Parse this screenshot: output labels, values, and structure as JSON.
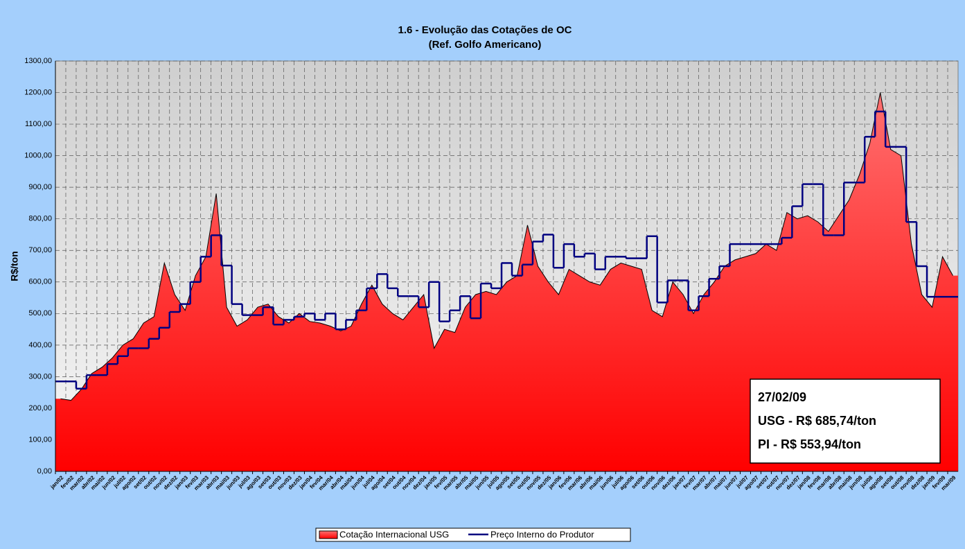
{
  "chart_data": {
    "type": "area",
    "title": "1.6 - Evolução das Cotações de OC",
    "subtitle": "(Ref. Golfo Americano)",
    "y_label": "R$/ton",
    "annotations": [
      "27/02/09",
      "USG - R$ 685,74/ton",
      "PI - R$ 553,94/ton"
    ],
    "categories": [
      "jan/02",
      "fev/02",
      "mar/02",
      "abr/02",
      "mai/02",
      "jun/02",
      "jul/02",
      "ago/02",
      "set/02",
      "out/02",
      "nov/02",
      "dez/02",
      "jan/03",
      "fev/03",
      "mar/03",
      "abr/03",
      "mai/03",
      "jun/03",
      "jul/03",
      "ago/03",
      "set/03",
      "out/03",
      "nov/03",
      "dez/03",
      "jan/04",
      "fev/04",
      "mar/04",
      "abr/04",
      "mai/04",
      "jun/04",
      "jul/04",
      "ago/04",
      "set/04",
      "out/04",
      "nov/04",
      "dez/04",
      "jan/05",
      "fev/05",
      "mar/05",
      "abr/05",
      "mai/05",
      "jun/05",
      "jul/05",
      "ago/05",
      "set/05",
      "out/05",
      "nov/05",
      "dez/05",
      "jan/06",
      "fev/06",
      "mar/06",
      "abr/06",
      "mai/06",
      "jun/06",
      "jul/06",
      "ago/06",
      "set/06",
      "out/06",
      "nov/06",
      "dez/06",
      "jan/07",
      "fev/07",
      "mar/07",
      "abr/07",
      "mai/07",
      "jun/07",
      "jul/07",
      "ago/07",
      "set/07",
      "out/07",
      "nov/07",
      "dez/07",
      "jan/08",
      "fev/08",
      "mar/08",
      "abr/08",
      "mai/08",
      "jun/08",
      "jul/08",
      "ago/08",
      "set/08",
      "out/08",
      "nov/08",
      "dez/08",
      "jan/09",
      "fev/09",
      "mar/09"
    ],
    "series": [
      {
        "name": "Cotação Internacional USG",
        "type": "area",
        "color": "#ff0000",
        "values": [
          230,
          225,
          260,
          310,
          330,
          360,
          400,
          420,
          470,
          490,
          660,
          560,
          510,
          620,
          680,
          880,
          520,
          460,
          480,
          520,
          530,
          490,
          470,
          500,
          475,
          470,
          460,
          445,
          460,
          530,
          590,
          530,
          500,
          480,
          520,
          560,
          390,
          450,
          440,
          520,
          560,
          570,
          560,
          600,
          620,
          780,
          650,
          600,
          560,
          640,
          620,
          600,
          590,
          640,
          660,
          650,
          640,
          510,
          490,
          600,
          560,
          500,
          560,
          600,
          650,
          670,
          680,
          690,
          720,
          700,
          820,
          800,
          810,
          790,
          760,
          810,
          860,
          940,
          1040,
          1200,
          1020,
          1000,
          720,
          560,
          520,
          680,
          620
        ]
      },
      {
        "name": "Preço Interno do Produtor",
        "type": "line",
        "color": "#000080",
        "values": [
          285,
          285,
          262,
          305,
          305,
          340,
          365,
          390,
          390,
          420,
          455,
          505,
          530,
          600,
          680,
          748,
          652,
          530,
          495,
          495,
          520,
          465,
          480,
          490,
          500,
          480,
          500,
          450,
          480,
          510,
          580,
          625,
          580,
          555,
          555,
          520,
          600,
          475,
          510,
          555,
          485,
          595,
          580,
          660,
          620,
          655,
          728,
          750,
          645,
          720,
          680,
          690,
          640,
          680,
          680,
          675,
          675,
          745,
          535,
          605,
          605,
          510,
          555,
          610,
          650,
          720,
          720,
          720,
          720,
          720,
          740,
          840,
          910,
          910,
          748,
          748,
          915,
          915,
          1060,
          1140,
          1028,
          1028,
          790,
          650,
          553,
          553,
          553
        ]
      }
    ],
    "ylim": [
      0,
      1300
    ],
    "yticks": [
      {
        "value": 0,
        "label": "0,00"
      },
      {
        "value": 100,
        "label": "100,00"
      },
      {
        "value": 200,
        "label": "200,00"
      },
      {
        "value": 300,
        "label": "300,00"
      },
      {
        "value": 400,
        "label": "400,00"
      },
      {
        "value": 500,
        "label": "500,00"
      },
      {
        "value": 600,
        "label": "600,00"
      },
      {
        "value": 700,
        "label": "700,00"
      },
      {
        "value": 800,
        "label": "800,00"
      },
      {
        "value": 900,
        "label": "900,00"
      },
      {
        "value": 1000,
        "label": "1000,00"
      },
      {
        "value": 1100,
        "label": "1100,00"
      },
      {
        "value": 1200,
        "label": "1200,00"
      },
      {
        "value": 1300,
        "label": "1300,00"
      }
    ],
    "grid": true,
    "legend": "bottom"
  }
}
